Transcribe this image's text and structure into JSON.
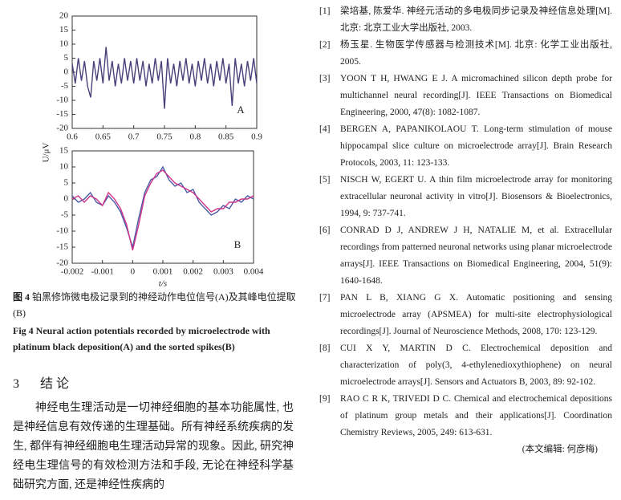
{
  "chart_data": [
    {
      "type": "line",
      "annotation": "A",
      "x": [
        0.6,
        0.605,
        0.61,
        0.615,
        0.62,
        0.625,
        0.63,
        0.635,
        0.64,
        0.645,
        0.65,
        0.655,
        0.66,
        0.665,
        0.67,
        0.675,
        0.68,
        0.685,
        0.69,
        0.695,
        0.7,
        0.705,
        0.71,
        0.715,
        0.72,
        0.725,
        0.73,
        0.735,
        0.74,
        0.745,
        0.75,
        0.755,
        0.76,
        0.765,
        0.77,
        0.775,
        0.78,
        0.785,
        0.79,
        0.795,
        0.8,
        0.805,
        0.81,
        0.815,
        0.82,
        0.825,
        0.83,
        0.835,
        0.84,
        0.845,
        0.85,
        0.855,
        0.86,
        0.865,
        0.87,
        0.875,
        0.88,
        0.885,
        0.89,
        0.895,
        0.9
      ],
      "series": [
        {
          "color": "#4b3f7a",
          "values": [
            3,
            -4,
            5,
            -3,
            4,
            -5,
            -9,
            4,
            -3,
            5,
            -4,
            9,
            -3,
            4,
            -5,
            3,
            -4,
            5,
            -3,
            4,
            -4,
            5,
            -3,
            4,
            -5,
            3,
            -4,
            5,
            -3,
            4,
            -13,
            5,
            -4,
            3,
            -5,
            4,
            -3,
            5,
            -4,
            3,
            -5,
            4,
            -3,
            5,
            -4,
            3,
            -5,
            4,
            -3,
            5,
            -4,
            3,
            -12,
            5,
            -4,
            3,
            -5,
            4,
            -3,
            5,
            -4
          ]
        }
      ],
      "xlim": [
        0.6,
        0.9
      ],
      "xticks": [
        0.6,
        0.65,
        0.7,
        0.75,
        0.8,
        0.85,
        0.9
      ],
      "ylim": [
        -20,
        20
      ],
      "yticks": [
        -20,
        -15,
        -10,
        -5,
        0,
        5,
        10,
        15,
        20
      ]
    },
    {
      "type": "line",
      "annotation": "B",
      "xlabel": "t/s",
      "ylabel": "U/μV",
      "x": [
        -0.002,
        -0.0018,
        -0.0016,
        -0.0014,
        -0.0012,
        -0.001,
        -0.0008,
        -0.0006,
        -0.0004,
        -0.0002,
        0,
        0.0002,
        0.0004,
        0.0006,
        0.0008,
        0.001,
        0.0012,
        0.0014,
        0.0016,
        0.0018,
        0.002,
        0.0022,
        0.0024,
        0.0026,
        0.0028,
        0.003,
        0.0032,
        0.0034,
        0.0036,
        0.0038,
        0.004
      ],
      "series": [
        {
          "color": "#4a5ba8",
          "values": [
            1,
            -1,
            0,
            2,
            -1,
            -2,
            1,
            -1,
            -4,
            -9,
            -15,
            -6,
            2,
            6,
            7,
            10,
            6,
            4,
            5,
            2,
            3,
            -1,
            -3,
            -5,
            -4,
            -2,
            -3,
            0,
            -1,
            1,
            0
          ]
        },
        {
          "color": "#d0338a",
          "values": [
            0,
            1,
            -1,
            1,
            0,
            -2,
            2,
            0,
            -3,
            -8,
            -16,
            -8,
            1,
            5,
            8,
            9,
            7,
            5,
            4,
            3,
            2,
            0,
            -2,
            -4,
            -3,
            -3,
            -1,
            -1,
            0,
            0,
            1
          ]
        }
      ],
      "xlim": [
        -0.002,
        0.004
      ],
      "xticks": [
        -0.002,
        -0.001,
        0,
        0.001,
        0.002,
        0.003,
        0.004
      ],
      "ylim": [
        -20,
        15
      ],
      "yticks": [
        -20,
        -15,
        -10,
        -5,
        0,
        5,
        10,
        15
      ]
    }
  ],
  "caption_zh": {
    "label": "图 4",
    "text": "铂黑修饰微电极记录到的神经动作电位信号(A)及其峰电位提取(B)"
  },
  "caption_en": {
    "label": "Fig 4",
    "text": "Neural action potentials recorded by microelectrode with platinum black deposition(A) and the sorted spikes(B)"
  },
  "section": {
    "number": "3",
    "title": "结 论"
  },
  "paragraph": "神经电生理活动是一切神经细胞的基本功能属性, 也是神经信息有效传递的生理基础。所有神经系统疾病的发生, 都伴有神经细胞电生理活动异常的现象。因此, 研究神经电生理信号的有效检测方法和手段, 无论在神经科学基础研究方面, 还是神经性疾病的",
  "references": [
    {
      "number": "[1]",
      "text": "梁培基, 陈爱华. 神经元活动的多电极同步记录及神经信息处理[M]. 北京: 北京工业大学出版社, 2003."
    },
    {
      "number": "[2]",
      "text": "杨玉星. 生物医学传感器与检测技术[M]. 北京: 化学工业出版社, 2005."
    },
    {
      "number": "[3]",
      "text": "YOON T H, HWANG E J. A micromachined silicon depth probe for multichannel neural recording[J]. IEEE Transactions on Biomedical Engineering, 2000, 47(8): 1082-1087."
    },
    {
      "number": "[4]",
      "text": "BERGEN A, PAPANIKOLAOU T. Long-term stimulation of mouse hippocampal slice culture on microelectrode array[J]. Brain Research Protocols, 2003, 11: 123-133."
    },
    {
      "number": "[5]",
      "text": "NISCH W, EGERT U. A thin film microelectrode array for monitoring extracellular neuronal activity in vitro[J]. Biosensors & Bioelectronics, 1994, 9: 737-741."
    },
    {
      "number": "[6]",
      "text": "CONRAD D J, ANDREW J H, NATALIE M, et al. Extracellular recordings from patterned neuronal networks using planar microelectrode arrays[J]. IEEE Transactions on Biomedical Engineering, 2004, 51(9): 1640-1648."
    },
    {
      "number": "[7]",
      "text": "PAN L B, XIANG G X. Automatic positioning and sensing microelectrode array (APSMEA) for multi-site electrophysiological recordings[J]. Journal of Neuroscience Methods, 2008, 170: 123-129."
    },
    {
      "number": "[8]",
      "text": "CUI X Y, MARTIN D C. Electrochemical deposition and characterization of poly(3, 4-ethylenedioxythiophene) on neural microelectrode arrays[J]. Sensors and Actuators B, 2003, 89: 92-102."
    },
    {
      "number": "[9]",
      "text": "RAO C R K, TRIVEDI D C. Chemical and electrochemical depositions of platinum group metals and their applications[J]. Coordination Chemistry Reviews, 2005, 249: 613-631."
    }
  ],
  "editor": "(本文编辑: 何彦梅)"
}
